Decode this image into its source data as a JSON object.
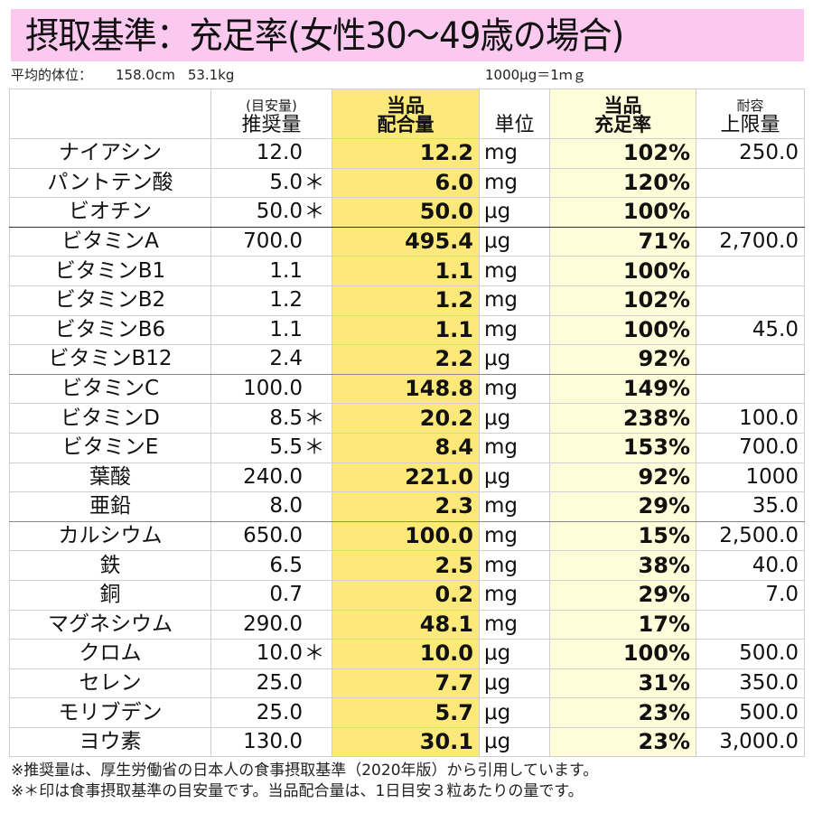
{
  "title": "摂取基準：充足率(女性30～49歳の場合)",
  "body_info": {
    "label": "平均的体位：",
    "height": "158.0cm",
    "weight": "53.1kg",
    "unit_note": "1000μg＝1ｍｇ"
  },
  "headers": {
    "name": "",
    "rec_small": "(目安量)",
    "rec": "推奨量",
    "amt_line1": "当品",
    "amt_line2": "配合量",
    "unit": "単位",
    "rate_line1": "当品",
    "rate_line2": "充足率",
    "ul_line1": "耐容",
    "ul_line2": "上限量"
  },
  "colors": {
    "title_band": "#fbc9ef",
    "amount_column": "#fde97a",
    "rate_column": "#fffcd9"
  },
  "rows": [
    {
      "name": "ナイアシン",
      "rec": "12.0",
      "star": "",
      "amt": "12.2",
      "unit": "mg",
      "rate": "102%",
      "ul": "250.0"
    },
    {
      "name": "パントテン酸",
      "rec": "5.0",
      "star": "＊",
      "amt": "6.0",
      "unit": "mg",
      "rate": "120%",
      "ul": ""
    },
    {
      "name": "ビオチン",
      "rec": "50.0",
      "star": "＊",
      "amt": "50.0",
      "unit": "μg",
      "rate": "100%",
      "ul": ""
    },
    {
      "name": "ビタミンA",
      "rec": "700.0",
      "star": "",
      "amt": "495.4",
      "unit": "μg",
      "rate": "71%",
      "ul": "2,700.0"
    },
    {
      "name": "ビタミンB1",
      "rec": "1.1",
      "star": "",
      "amt": "1.1",
      "unit": "mg",
      "rate": "100%",
      "ul": ""
    },
    {
      "name": "ビタミンB2",
      "rec": "1.2",
      "star": "",
      "amt": "1.2",
      "unit": "mg",
      "rate": "102%",
      "ul": ""
    },
    {
      "name": "ビタミンB6",
      "rec": "1.1",
      "star": "",
      "amt": "1.1",
      "unit": "mg",
      "rate": "100%",
      "ul": "45.0"
    },
    {
      "name": "ビタミンB12",
      "rec": "2.4",
      "star": "",
      "amt": "2.2",
      "unit": "μg",
      "rate": "92%",
      "ul": ""
    },
    {
      "name": "ビタミンC",
      "rec": "100.0",
      "star": "",
      "amt": "148.8",
      "unit": "mg",
      "rate": "149%",
      "ul": ""
    },
    {
      "name": "ビタミンD",
      "rec": "8.5",
      "star": "＊",
      "amt": "20.2",
      "unit": "μg",
      "rate": "238%",
      "ul": "100.0"
    },
    {
      "name": "ビタミンE",
      "rec": "5.5",
      "star": "＊",
      "amt": "8.4",
      "unit": "mg",
      "rate": "153%",
      "ul": "700.0"
    },
    {
      "name": "葉酸",
      "rec": "240.0",
      "star": "",
      "amt": "221.0",
      "unit": "μg",
      "rate": "92%",
      "ul": "1000"
    },
    {
      "name": "亜鉛",
      "rec": "8.0",
      "star": "",
      "amt": "2.3",
      "unit": "mg",
      "rate": "29%",
      "ul": "35.0"
    },
    {
      "name": "カルシウム",
      "rec": "650.0",
      "star": "",
      "amt": "100.0",
      "unit": "mg",
      "rate": "15%",
      "ul": "2,500.0"
    },
    {
      "name": "鉄",
      "rec": "6.5",
      "star": "",
      "amt": "2.5",
      "unit": "mg",
      "rate": "38%",
      "ul": "40.0"
    },
    {
      "name": "銅",
      "rec": "0.7",
      "star": "",
      "amt": "0.2",
      "unit": "mg",
      "rate": "29%",
      "ul": "7.0"
    },
    {
      "name": "マグネシウム",
      "rec": "290.0",
      "star": "",
      "amt": "48.1",
      "unit": "mg",
      "rate": "17%",
      "ul": ""
    },
    {
      "name": "クロム",
      "rec": "10.0",
      "star": "＊",
      "amt": "10.0",
      "unit": "μg",
      "rate": "100%",
      "ul": "500.0"
    },
    {
      "name": "セレン",
      "rec": "25.0",
      "star": "",
      "amt": "7.7",
      "unit": "μg",
      "rate": "31%",
      "ul": "350.0"
    },
    {
      "name": "モリブデン",
      "rec": "25.0",
      "star": "",
      "amt": "5.7",
      "unit": "μg",
      "rate": "23%",
      "ul": "500.0"
    },
    {
      "name": "ヨウ素",
      "rec": "130.0",
      "star": "",
      "amt": "30.1",
      "unit": "μg",
      "rate": "23%",
      "ul": "3,000.0"
    }
  ],
  "footnotes": [
    "※推奨量は、厚生労働省の日本人の食事摂取基準（2020年版）から引用しています。",
    "※＊印は食事摂取基準の目安量です。当品配合量は、1日目安３粒あたりの量です。"
  ]
}
